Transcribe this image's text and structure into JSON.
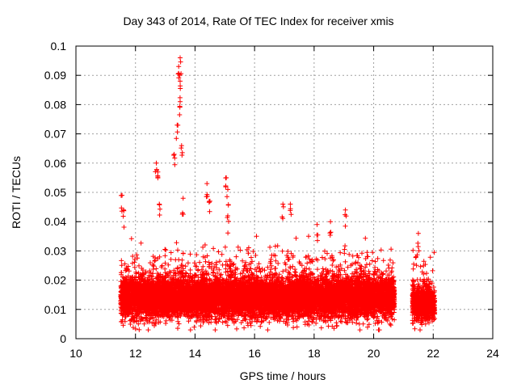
{
  "chart_data": {
    "type": "scatter",
    "title": "Day 343 of 2014, Rate Of TEC Index for receiver xmis",
    "xlabel": "GPS time / hours",
    "ylabel": "ROTI / TECUs",
    "xlim": [
      10,
      24
    ],
    "ylim": [
      0,
      0.1
    ],
    "xticks": [
      "10",
      "12",
      "14",
      "16",
      "18",
      "20",
      "22",
      "24"
    ],
    "yticks": [
      "0",
      "0.01",
      "0.02",
      "0.03",
      "0.04",
      "0.05",
      "0.06",
      "0.07",
      "0.08",
      "0.09",
      "0.1"
    ],
    "grid": true,
    "marker": "+",
    "color": "#ff0000",
    "series": [
      {
        "name": "ROTI",
        "segments": [
          {
            "x_start": 11.5,
            "x_end": 20.7,
            "median": 0.014,
            "spread": 0.006
          },
          {
            "x_start": 21.3,
            "x_end": 22.05,
            "median": 0.012,
            "spread": 0.005
          }
        ],
        "peaks": [
          {
            "x": 11.55,
            "y": 0.049
          },
          {
            "x": 11.6,
            "y": 0.044
          },
          {
            "x": 12.7,
            "y": 0.06
          },
          {
            "x": 12.75,
            "y": 0.057
          },
          {
            "x": 12.8,
            "y": 0.046
          },
          {
            "x": 13.3,
            "y": 0.063
          },
          {
            "x": 13.4,
            "y": 0.073
          },
          {
            "x": 13.45,
            "y": 0.093
          },
          {
            "x": 13.5,
            "y": 0.096
          },
          {
            "x": 13.5,
            "y": 0.088
          },
          {
            "x": 13.5,
            "y": 0.081
          },
          {
            "x": 13.55,
            "y": 0.066
          },
          {
            "x": 13.6,
            "y": 0.048
          },
          {
            "x": 14.4,
            "y": 0.053
          },
          {
            "x": 14.5,
            "y": 0.047
          },
          {
            "x": 15.05,
            "y": 0.055
          },
          {
            "x": 15.1,
            "y": 0.051
          },
          {
            "x": 15.1,
            "y": 0.042
          },
          {
            "x": 16.95,
            "y": 0.046
          },
          {
            "x": 17.2,
            "y": 0.046
          },
          {
            "x": 18.1,
            "y": 0.039
          },
          {
            "x": 18.55,
            "y": 0.04
          },
          {
            "x": 19.05,
            "y": 0.044
          },
          {
            "x": 21.5,
            "y": 0.036
          }
        ]
      }
    ]
  }
}
